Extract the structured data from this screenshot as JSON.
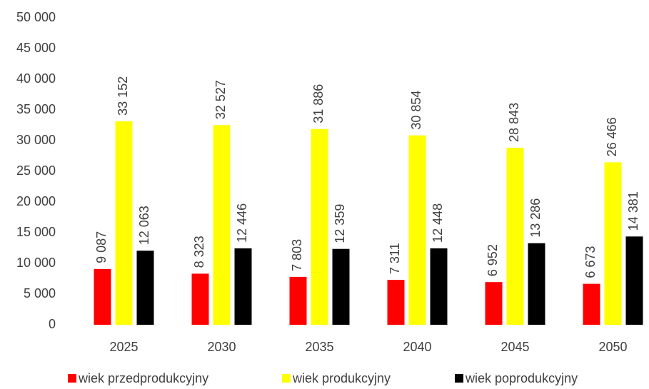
{
  "chart_data": {
    "type": "bar",
    "categories": [
      "2025",
      "2030",
      "2035",
      "2040",
      "2045",
      "2050"
    ],
    "series": [
      {
        "name": "wiek przedprodukcyjny",
        "color": "#ff0000",
        "values": [
          9087,
          8323,
          7803,
          7311,
          6952,
          6673
        ],
        "value_labels": [
          "9 087",
          "8 323",
          "7 803",
          "7 311",
          "6 952",
          "6 673"
        ]
      },
      {
        "name": "wiek produkcyjny",
        "color": "#ffff00",
        "values": [
          33152,
          32527,
          31886,
          30854,
          28843,
          26466
        ],
        "value_labels": [
          "33 152",
          "32 527",
          "31 886",
          "30 854",
          "28 843",
          "26 466"
        ]
      },
      {
        "name": "wiek poprodukcyjny",
        "color": "#000000",
        "values": [
          12063,
          12446,
          12359,
          12448,
          13286,
          14381
        ],
        "value_labels": [
          "12 063",
          "12 446",
          "12 359",
          "12 448",
          "13 286",
          "14 381"
        ]
      }
    ],
    "ylim": [
      0,
      50000
    ],
    "yticks": [
      0,
      {
        "value": 5000,
        "label": "5 000"
      },
      {
        "value": 10000,
        "label": "10 000"
      },
      {
        "value": 15000,
        "label": "15 000"
      },
      {
        "value": 20000,
        "label": "20 000"
      },
      {
        "value": 25000,
        "label": "25 000"
      },
      {
        "value": 30000,
        "label": "30 000"
      },
      {
        "value": 35000,
        "label": "35 000"
      },
      {
        "value": 40000,
        "label": "40 000"
      },
      {
        "value": 45000,
        "label": "45 000"
      },
      {
        "value": 50000,
        "label": "50 000"
      }
    ],
    "grid": false,
    "legend": "bottom"
  }
}
